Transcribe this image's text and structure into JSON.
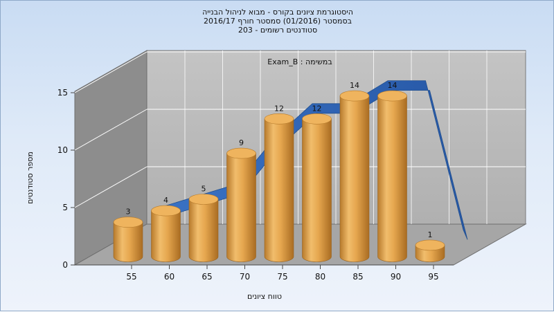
{
  "title": {
    "line1": "היסטוגרמת ציונים בקורס - מבוא לניהול הבנייה",
    "line2": "בסמסטר  (01/2016)  סמסטר חורף 2016/17",
    "line3": "סטודנטים רשומים - 203"
  },
  "colors": {
    "bar": "#e2a24a",
    "line": "#2f66b8",
    "back_wall": "#b9b9b9",
    "side_wall": "#8c8c8c",
    "floor": "#a7a7a7"
  },
  "chart_data": {
    "type": "bar",
    "title": "היסטוגרמת ציונים בקורס - מבוא לניהול הבנייה",
    "series_label": "Exam_B : במשימה",
    "xlabel": "טווח ציונים",
    "ylabel": "מספר סטודנטים",
    "categories": [
      "55",
      "60",
      "65",
      "70",
      "75",
      "80",
      "85",
      "90",
      "95"
    ],
    "values": [
      3,
      4,
      5,
      9,
      12,
      12,
      14,
      14,
      1
    ],
    "x_ticks": [
      "55",
      "60",
      "65",
      "70",
      "75",
      "80",
      "85",
      "90",
      "95"
    ],
    "y_ticks": [
      "0",
      "5",
      "10",
      "15"
    ],
    "ylim": [
      0,
      15
    ],
    "grid": true,
    "legend": "top-center",
    "trend_line": true
  }
}
